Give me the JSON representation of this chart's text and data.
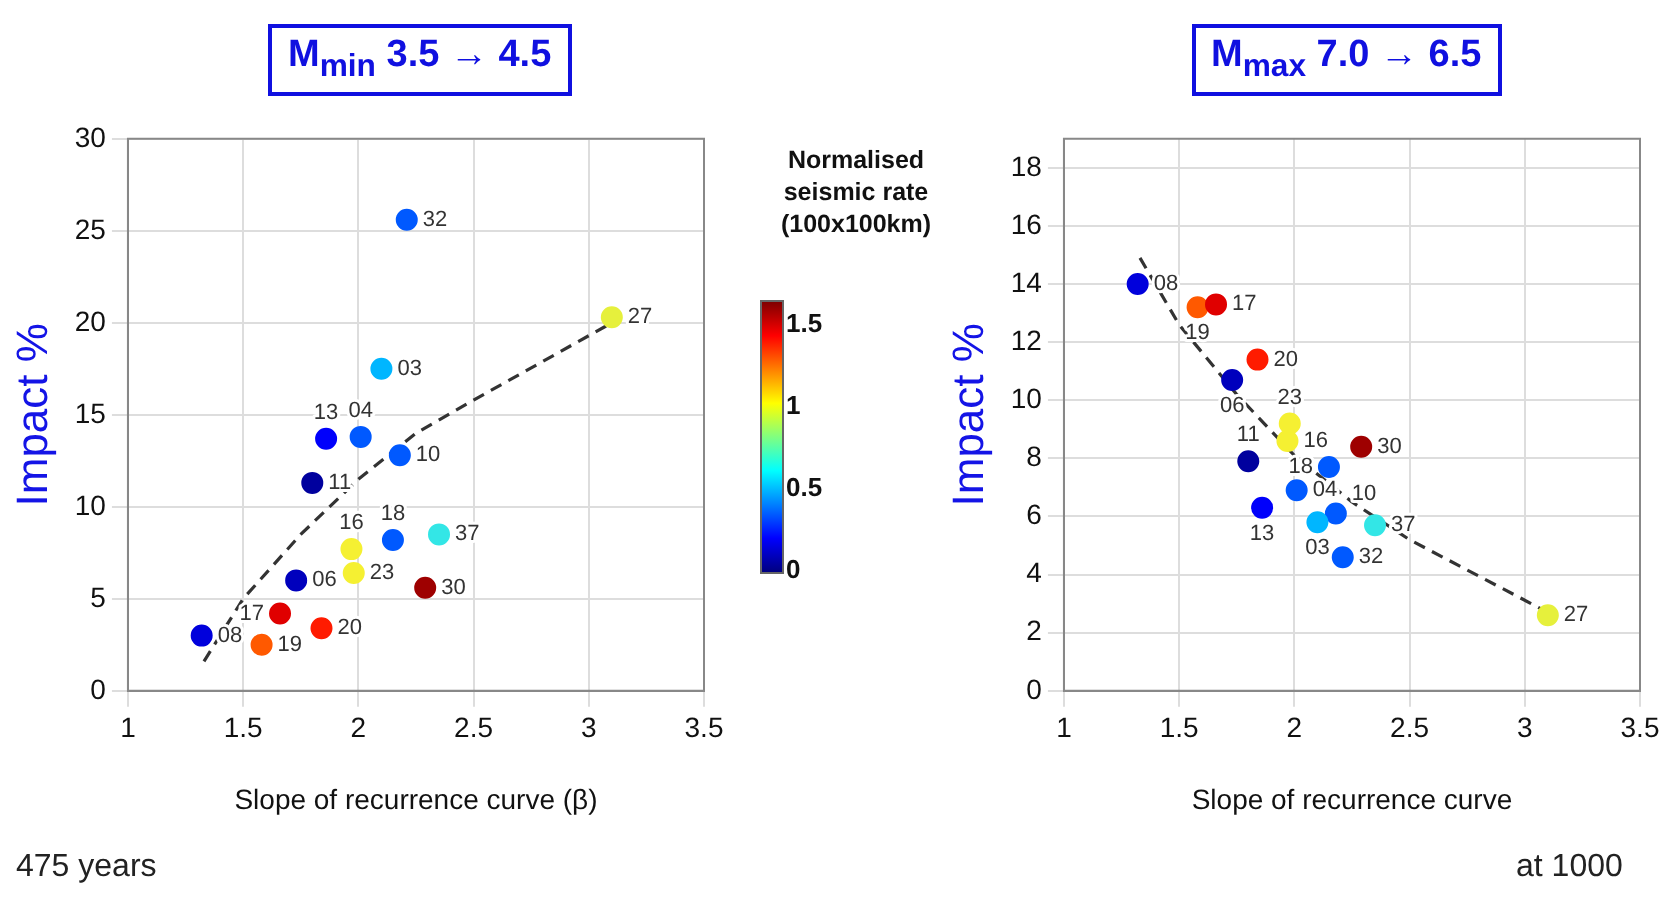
{
  "chart_data": [
    {
      "type": "scatter",
      "title": "M$_{min}$  3.5 → 4.5",
      "xlabel": "Slope of recurrence curve (β)",
      "ylabel": "Impact %",
      "xlim": [
        1,
        3.5
      ],
      "xticks": [
        1,
        1.5,
        2,
        2.5,
        3,
        3.5
      ],
      "ylim": [
        0,
        30
      ],
      "yticks": [
        0,
        5,
        10,
        15,
        20,
        25,
        30
      ],
      "grid": true,
      "clabel": "Normalised seismic rate (100x100km)",
      "clim": [
        0,
        1.65
      ],
      "cticks": [
        0,
        0.5,
        1,
        1.5
      ],
      "series": [
        {
          "type": "scatter",
          "marker": "circle",
          "x": [
            1.32,
            1.58,
            1.66,
            1.84,
            1.73,
            1.8,
            1.86,
            2.01,
            2.18,
            2.1,
            2.21,
            1.97,
            1.98,
            2.15,
            2.35,
            2.29,
            3.1
          ],
          "values": [
            3.0,
            2.5,
            4.2,
            3.4,
            6.0,
            11.3,
            13.7,
            13.8,
            12.8,
            17.5,
            25.6,
            7.7,
            6.4,
            8.2,
            8.5,
            5.6,
            20.3
          ],
          "colors": [
            "#0000dc",
            "#ff5900",
            "#e00000",
            "#ff1b00",
            "#0000bd",
            "#00009e",
            "#0000fb",
            "#0059ff",
            "#0059ff",
            "#00b6ff",
            "#0059ff",
            "#f5f032",
            "#f5f032",
            "#0059ff",
            "#33e6e6",
            "#9e0000",
            "#e6f03c"
          ]
        },
        {
          "type": "line",
          "marker": "none",
          "line_style": "dashed",
          "color": "#333333",
          "x": [
            1.33,
            1.5,
            1.75,
            2.0,
            2.25,
            2.5,
            3.1
          ],
          "values": [
            1.6,
            5,
            8.5,
            11.5,
            14,
            15.8,
            20
          ]
        }
      ],
      "annotations": [
        {
          "text": "08",
          "x": 1.32,
          "y": 3.0
        },
        {
          "text": "19",
          "x": 1.58,
          "y": 2.5
        },
        {
          "text": "17",
          "x": 1.66,
          "y": 4.2
        },
        {
          "text": "20",
          "x": 1.84,
          "y": 3.4
        },
        {
          "text": "06",
          "x": 1.73,
          "y": 6.0
        },
        {
          "text": "11",
          "x": 1.8,
          "y": 11.3
        },
        {
          "text": "13",
          "x": 1.86,
          "y": 13.7
        },
        {
          "text": "04",
          "x": 2.01,
          "y": 13.8
        },
        {
          "text": "10",
          "x": 2.18,
          "y": 12.8
        },
        {
          "text": "03",
          "x": 2.1,
          "y": 17.5
        },
        {
          "text": "32",
          "x": 2.21,
          "y": 25.6
        },
        {
          "text": "16",
          "x": 1.97,
          "y": 7.7
        },
        {
          "text": "23",
          "x": 1.98,
          "y": 6.4
        },
        {
          "text": "18",
          "x": 2.15,
          "y": 8.2
        },
        {
          "text": "37",
          "x": 2.35,
          "y": 8.5
        },
        {
          "text": "30",
          "x": 2.29,
          "y": 5.6
        },
        {
          "text": "27",
          "x": 3.1,
          "y": 20.3
        },
        "475 years"
      ]
    },
    {
      "type": "scatter",
      "title": "M$_{max}$ 7.0 → 6.5",
      "xlabel": "Slope of recurrence curve",
      "ylabel": "Impact %",
      "xlim": [
        1,
        3.5
      ],
      "xticks": [
        1,
        1.5,
        2,
        2.5,
        3,
        3.5
      ],
      "ylim": [
        0,
        19
      ],
      "yticks": [
        0,
        2,
        4,
        6,
        8,
        10,
        12,
        14,
        16,
        18
      ],
      "grid": true,
      "series": [
        {
          "type": "scatter",
          "marker": "circle",
          "x": [
            1.32,
            1.58,
            1.66,
            1.84,
            1.73,
            1.8,
            1.86,
            2.01,
            2.18,
            2.1,
            2.21,
            1.97,
            1.98,
            2.15,
            2.35,
            2.29,
            3.1
          ],
          "values": [
            14.0,
            13.2,
            13.3,
            11.4,
            10.7,
            7.9,
            6.3,
            6.9,
            6.1,
            5.8,
            4.6,
            8.6,
            9.2,
            7.7,
            5.7,
            8.4,
            2.6
          ],
          "colors": [
            "#0000dc",
            "#ff5900",
            "#e00000",
            "#ff1b00",
            "#0000bd",
            "#00009e",
            "#0000fb",
            "#0059ff",
            "#0059ff",
            "#00b6ff",
            "#0059ff",
            "#f5f032",
            "#f5f032",
            "#0059ff",
            "#33e6e6",
            "#9e0000",
            "#e6f03c"
          ]
        },
        {
          "type": "line",
          "marker": "none",
          "line_style": "dashed",
          "color": "#333333",
          "x": [
            1.33,
            1.5,
            1.75,
            2.0,
            2.25,
            2.5,
            3.1
          ],
          "values": [
            14.9,
            12.6,
            10.2,
            8.1,
            6.5,
            5.2,
            2.7
          ]
        }
      ],
      "annotations": [
        {
          "text": "08",
          "x": 1.32,
          "y": 14.0
        },
        {
          "text": "19",
          "x": 1.58,
          "y": 13.2
        },
        {
          "text": "17",
          "x": 1.66,
          "y": 13.3
        },
        {
          "text": "20",
          "x": 1.84,
          "y": 11.4
        },
        {
          "text": "06",
          "x": 1.73,
          "y": 10.7
        },
        {
          "text": "11",
          "x": 1.8,
          "y": 7.9
        },
        {
          "text": "13",
          "x": 1.86,
          "y": 6.3
        },
        {
          "text": "04",
          "x": 2.01,
          "y": 6.9
        },
        {
          "text": "10",
          "x": 2.18,
          "y": 6.1
        },
        {
          "text": "03",
          "x": 2.1,
          "y": 5.8
        },
        {
          "text": "32",
          "x": 2.21,
          "y": 4.6
        },
        {
          "text": "16",
          "x": 1.97,
          "y": 8.6
        },
        {
          "text": "23",
          "x": 1.98,
          "y": 9.2
        },
        {
          "text": "18",
          "x": 2.15,
          "y": 7.7
        },
        {
          "text": "37",
          "x": 2.35,
          "y": 5.7
        },
        {
          "text": "30",
          "x": 2.29,
          "y": 8.4
        },
        {
          "text": "27",
          "x": 3.1,
          "y": 2.6
        },
        "at 1000"
      ]
    }
  ]
}
